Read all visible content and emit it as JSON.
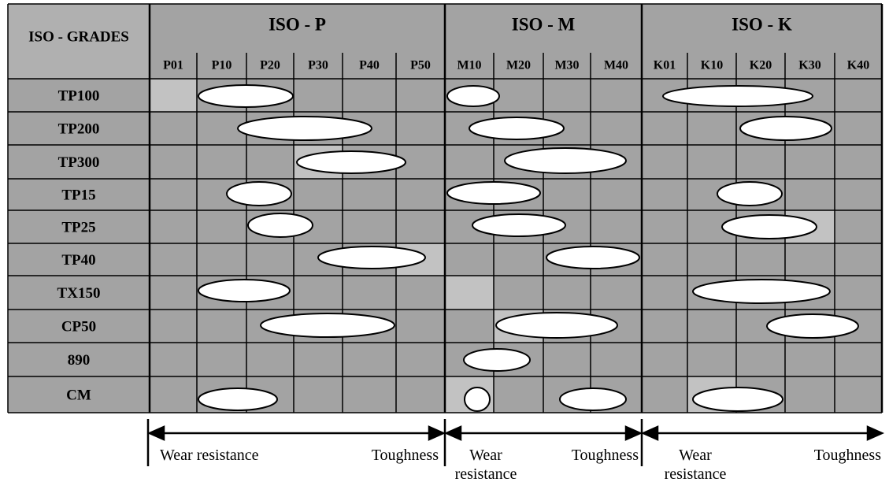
{
  "header": {
    "title": "ISO - GRADES"
  },
  "groups": [
    {
      "name": "ISO - P",
      "columns": [
        "P01",
        "P10",
        "P20",
        "P30",
        "P40",
        "P50"
      ]
    },
    {
      "name": "ISO - M",
      "columns": [
        "M10",
        "M20",
        "M30",
        "M40"
      ]
    },
    {
      "name": "ISO - K",
      "columns": [
        "K01",
        "K10",
        "K20",
        "K30",
        "K40"
      ]
    }
  ],
  "rows": [
    "TP100",
    "TP200",
    "TP300",
    "TP15",
    "TP25",
    "TP40",
    "TX150",
    "CP50",
    "890",
    "CM"
  ],
  "footer": [
    {
      "wear": "Wear resistance",
      "toughness": "Toughness"
    },
    {
      "wear": "Wear resistance",
      "toughness": "Toughness"
    },
    {
      "wear": "Wear resistance",
      "toughness": "Toughness"
    }
  ]
}
